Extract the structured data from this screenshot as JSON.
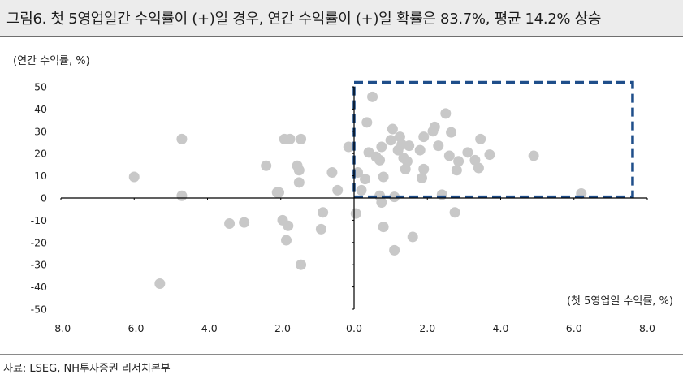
{
  "chart_data": {
    "type": "scatter",
    "title": "그림6. 첫 5영업일간 수익률이 (+)일 경우, 연간 수익률이 (+)일 확률은 83.7%, 평균 14.2% 상승",
    "ylabel": "(연간 수익률, %)",
    "xlabel": "(첫 5영업일 수익률, %)",
    "source": "자료: LSEG, NH투자증권 리서치본부",
    "xlim": [
      -8,
      8
    ],
    "ylim": [
      -50,
      50
    ],
    "xticks": [
      "-8.0",
      "-6.0",
      "-4.0",
      "-2.0",
      "0.0",
      "2.0",
      "4.0",
      "6.0",
      "8.0"
    ],
    "yticks": [
      "50",
      "40",
      "30",
      "20",
      "10",
      "0",
      "-10",
      "-20",
      "-30",
      "-40",
      "-50"
    ],
    "highlight_box": {
      "x": [
        0,
        7.6
      ],
      "y": [
        0.5,
        52
      ]
    },
    "points": [
      [
        -6.0,
        9.5
      ],
      [
        -5.3,
        -38.5
      ],
      [
        -4.7,
        26.5
      ],
      [
        -4.7,
        1.0
      ],
      [
        -3.4,
        -11.5
      ],
      [
        -3.0,
        -11.0
      ],
      [
        -2.4,
        14.5
      ],
      [
        -2.1,
        2.5
      ],
      [
        -2.05,
        2.5
      ],
      [
        -1.95,
        -10.0
      ],
      [
        -1.9,
        26.5
      ],
      [
        -1.85,
        -19.0
      ],
      [
        -1.8,
        -12.5
      ],
      [
        -1.75,
        26.5
      ],
      [
        -1.55,
        14.5
      ],
      [
        -1.5,
        12.5
      ],
      [
        -1.5,
        7.0
      ],
      [
        -1.45,
        26.5
      ],
      [
        -1.45,
        -30.0
      ],
      [
        -0.9,
        -14.0
      ],
      [
        -0.85,
        -6.5
      ],
      [
        -0.6,
        11.5
      ],
      [
        -0.45,
        3.5
      ],
      [
        -0.15,
        23.0
      ],
      [
        0.05,
        -7.0
      ],
      [
        0.1,
        11.5
      ],
      [
        0.2,
        3.5
      ],
      [
        0.3,
        8.5
      ],
      [
        0.35,
        34.0
      ],
      [
        0.4,
        20.5
      ],
      [
        0.5,
        45.5
      ],
      [
        0.6,
        18.5
      ],
      [
        0.7,
        17.0
      ],
      [
        0.7,
        1.0
      ],
      [
        0.75,
        -2.0
      ],
      [
        0.75,
        23.0
      ],
      [
        0.8,
        -13.0
      ],
      [
        0.8,
        9.5
      ],
      [
        1.0,
        26.0
      ],
      [
        1.05,
        31.0
      ],
      [
        1.1,
        0.5
      ],
      [
        1.1,
        -23.5
      ],
      [
        1.2,
        21.5
      ],
      [
        1.25,
        27.5
      ],
      [
        1.3,
        24.0
      ],
      [
        1.35,
        18.0
      ],
      [
        1.4,
        13.0
      ],
      [
        1.45,
        16.5
      ],
      [
        1.5,
        23.5
      ],
      [
        1.6,
        -17.5
      ],
      [
        1.8,
        21.5
      ],
      [
        1.85,
        9.0
      ],
      [
        1.9,
        13.0
      ],
      [
        1.9,
        27.5
      ],
      [
        2.15,
        30.0
      ],
      [
        2.2,
        32.0
      ],
      [
        2.3,
        23.5
      ],
      [
        2.4,
        1.5
      ],
      [
        2.5,
        38.0
      ],
      [
        2.6,
        19.0
      ],
      [
        2.65,
        29.5
      ],
      [
        2.75,
        -6.5
      ],
      [
        2.8,
        12.5
      ],
      [
        2.85,
        16.5
      ],
      [
        3.1,
        20.5
      ],
      [
        3.3,
        17.0
      ],
      [
        3.4,
        13.5
      ],
      [
        3.45,
        26.5
      ],
      [
        3.7,
        19.5
      ],
      [
        4.9,
        19.0
      ],
      [
        6.2,
        2.0
      ]
    ]
  },
  "colors": {
    "point": "#c8c8c8",
    "box": "#1f4e8a",
    "axis": "#000000",
    "title_bg": "#ececec"
  }
}
